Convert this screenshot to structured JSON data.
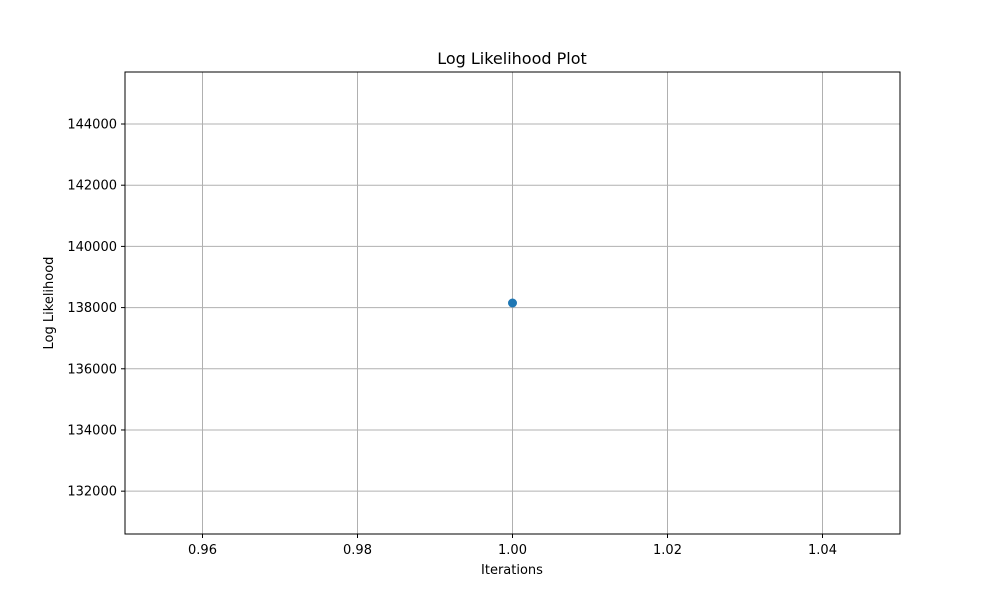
{
  "chart_data": {
    "type": "scatter",
    "title": "Log Likelihood Plot",
    "xlabel": "Iterations",
    "ylabel": "Log Likelihood",
    "xlim": [
      0.95,
      1.05
    ],
    "ylim": [
      130600,
      145700
    ],
    "xticks": [
      0.96,
      0.98,
      1.0,
      1.02,
      1.04
    ],
    "xtick_labels": [
      "0.96",
      "0.98",
      "1.00",
      "1.02",
      "1.04"
    ],
    "yticks": [
      132000,
      134000,
      136000,
      138000,
      140000,
      142000,
      144000
    ],
    "ytick_labels": [
      "132000",
      "134000",
      "136000",
      "138000",
      "140000",
      "142000",
      "144000"
    ],
    "grid": true,
    "series": [
      {
        "name": "log_likelihood",
        "color": "#1f77b4",
        "marker": "o",
        "x": [
          1.0
        ],
        "y": [
          138150
        ]
      }
    ]
  }
}
